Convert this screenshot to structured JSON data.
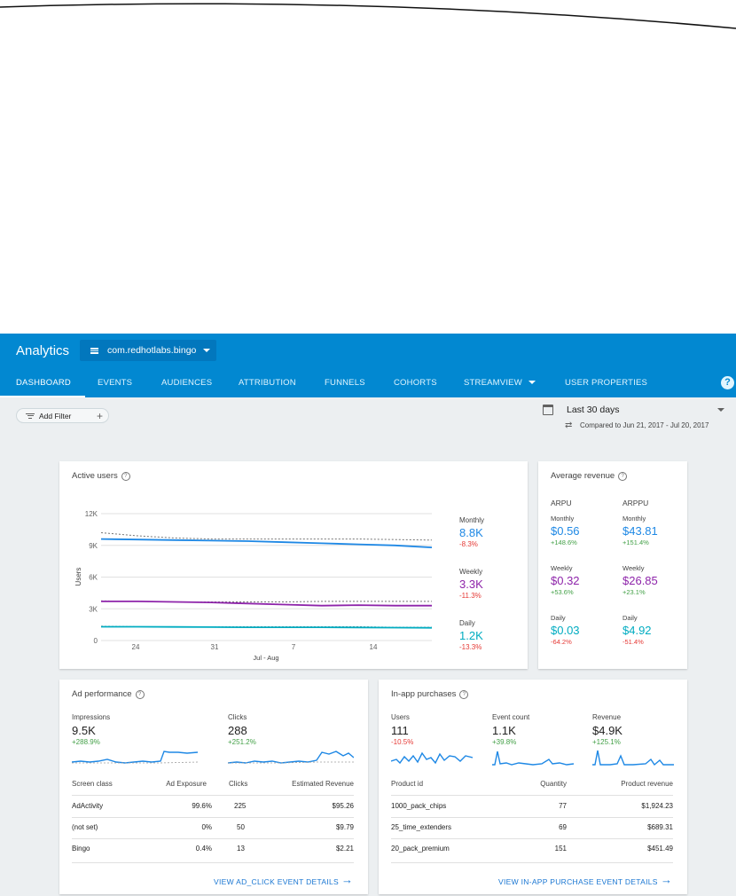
{
  "app": {
    "title": "Analytics",
    "project": "com.redhotlabs.bingo",
    "tabs": [
      "DASHBOARD",
      "EVENTS",
      "AUDIENCES",
      "ATTRIBUTION",
      "FUNNELS",
      "COHORTS",
      "STREAMVIEW",
      "USER PROPERTIES"
    ],
    "help_label": "?"
  },
  "filter": {
    "label": "Add Filter",
    "add_label": "+"
  },
  "date": {
    "range": "Last 30 days",
    "comparison": "Compared to Jun 21, 2017 - Jul 20, 2017"
  },
  "active_users": {
    "title": "Active users",
    "chart_data": {
      "type": "line",
      "ylabel": "Users",
      "xlabel": "Jul - Aug",
      "ylim": [
        0,
        12000
      ],
      "y_ticks": [
        "12K",
        "9K",
        "6K",
        "3K",
        "0"
      ],
      "x_ticks": [
        "24",
        "31",
        "7",
        "14"
      ],
      "series": [
        {
          "name": "Monthly",
          "color": "#1e88e5",
          "values": [
            9600,
            9550,
            9500,
            9450,
            9400,
            9300,
            9200,
            9100,
            9000,
            8800
          ],
          "previous": [
            10200,
            9900,
            9700,
            9600,
            9600,
            9600,
            9600,
            9600,
            9550,
            9500
          ]
        },
        {
          "name": "Weekly",
          "color": "#8e24aa",
          "values": [
            3700,
            3700,
            3650,
            3600,
            3500,
            3400,
            3300,
            3350,
            3300,
            3300
          ],
          "previous": [
            3750,
            3700,
            3650,
            3650,
            3650,
            3650,
            3700,
            3700,
            3700,
            3700
          ]
        },
        {
          "name": "Daily",
          "color": "#00acc1",
          "values": [
            1300,
            1300,
            1280,
            1270,
            1250,
            1250,
            1250,
            1230,
            1220,
            1200
          ],
          "previous": [
            1350,
            1300,
            1300,
            1300,
            1300,
            1300,
            1300,
            1300,
            1250,
            1250
          ]
        }
      ]
    },
    "legend": [
      {
        "label": "Monthly",
        "value": "8.8K",
        "change": "-8.3%",
        "color": "#1e88e5"
      },
      {
        "label": "Weekly",
        "value": "3.3K",
        "change": "-11.3%",
        "color": "#8e24aa"
      },
      {
        "label": "Daily",
        "value": "1.2K",
        "change": "-13.3%",
        "color": "#00acc1"
      }
    ]
  },
  "average_revenue": {
    "title": "Average revenue",
    "columns": [
      {
        "header": "ARPU",
        "items": [
          {
            "label": "Monthly",
            "value": "$0.56",
            "change": "+148.6%",
            "color": "#1e88e5",
            "change_color": "#43a047"
          },
          {
            "label": "Weekly",
            "value": "$0.32",
            "change": "+53.6%",
            "color": "#8e24aa",
            "change_color": "#43a047"
          },
          {
            "label": "Daily",
            "value": "$0.03",
            "change": "-64.2%",
            "color": "#00acc1",
            "change_color": "#e53935"
          }
        ]
      },
      {
        "header": "ARPPU",
        "items": [
          {
            "label": "Monthly",
            "value": "$43.81",
            "change": "+151.4%",
            "color": "#1e88e5",
            "change_color": "#43a047"
          },
          {
            "label": "Weekly",
            "value": "$26.85",
            "change": "+23.1%",
            "color": "#8e24aa",
            "change_color": "#43a047"
          },
          {
            "label": "Daily",
            "value": "$4.92",
            "change": "-51.4%",
            "color": "#00acc1",
            "change_color": "#e53935"
          }
        ]
      }
    ]
  },
  "ad_performance": {
    "title": "Ad performance",
    "kpis": [
      {
        "label": "Impressions",
        "value": "9.5K",
        "change": "+288.9%"
      },
      {
        "label": "Clicks",
        "value": "288",
        "change": "+251.2%"
      }
    ],
    "table": {
      "headers": [
        "Screen class",
        "Ad Exposure",
        "Clicks",
        "Estimated Revenue"
      ],
      "rows": [
        [
          "AdActivity",
          "99.6%",
          "225",
          "$95.26"
        ],
        [
          "(not set)",
          "0%",
          "50",
          "$9.79"
        ],
        [
          "Bingo",
          "0.4%",
          "13",
          "$2.21"
        ]
      ]
    },
    "link": "VIEW AD_CLICK EVENT DETAILS"
  },
  "in_app_purchases": {
    "title": "In-app purchases",
    "kpis": [
      {
        "label": "Users",
        "value": "111",
        "change": "-10.5%",
        "change_color": "#e53935"
      },
      {
        "label": "Event count",
        "value": "1.1K",
        "change": "+39.8%",
        "change_color": "#43a047"
      },
      {
        "label": "Revenue",
        "value": "$4.9K",
        "change": "+125.1%",
        "change_color": "#43a047"
      }
    ],
    "table": {
      "headers": [
        "Product id",
        "Quantity",
        "Product revenue"
      ],
      "rows": [
        [
          "1000_pack_chips",
          "77",
          "$1,924.23"
        ],
        [
          "25_time_extenders",
          "69",
          "$689.31"
        ],
        [
          "20_pack_premium",
          "151",
          "$451.49"
        ]
      ]
    },
    "link": "VIEW IN-APP PURCHASE EVENT DETAILS"
  },
  "colors": {
    "primary": "#0288d1",
    "positive": "#43a047",
    "negative": "#e53935",
    "link": "#1976d2"
  }
}
